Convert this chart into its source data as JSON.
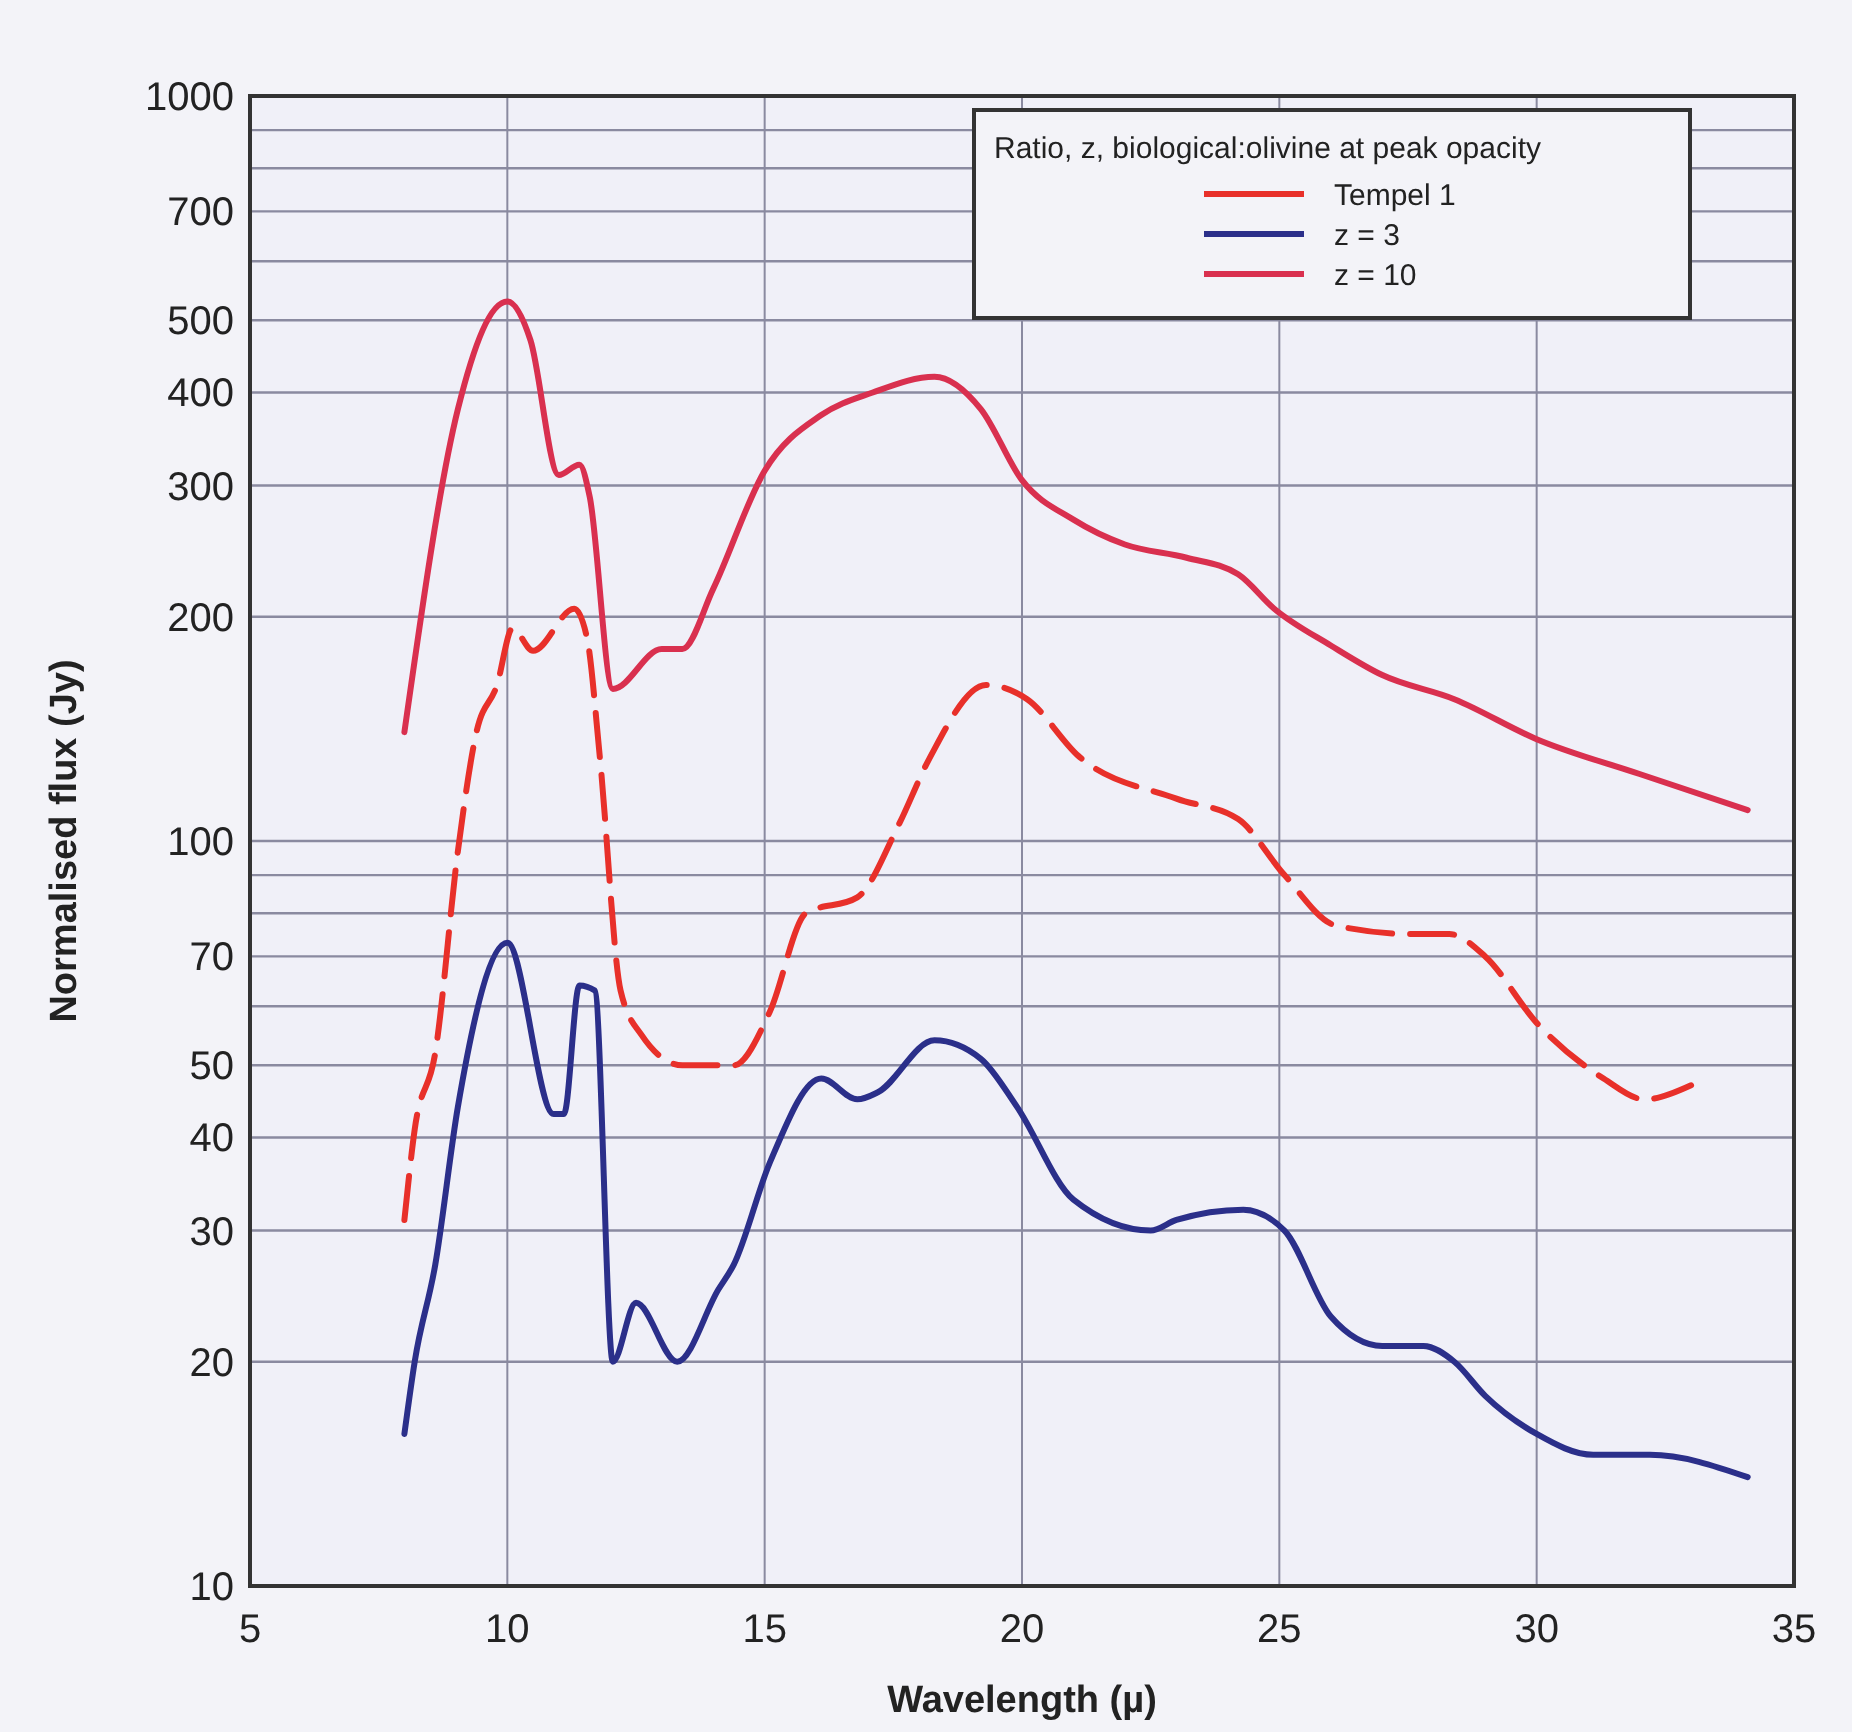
{
  "chart_data": {
    "type": "line",
    "xlabel": "Wavelength (µ)",
    "ylabel": "Normalised flux (Jy)",
    "legend_title": "Ratio, z, biological:olivine at peak opacity",
    "log": "y",
    "grid": true,
    "legend": "top right",
    "xlim": [
      5,
      35
    ],
    "xticks": [
      5,
      10,
      15,
      20,
      25,
      30,
      35
    ],
    "ylim": [
      10,
      1000
    ],
    "yticks": [
      10,
      20,
      30,
      40,
      50,
      {
        "value": 60,
        "label": null
      },
      70,
      {
        "value": 80,
        "label": null
      },
      {
        "value": 90,
        "label": null
      },
      100,
      200,
      300,
      400,
      500,
      {
        "value": 600,
        "label": null
      },
      700,
      {
        "value": 800,
        "label": null
      },
      {
        "value": 900,
        "label": null
      },
      1000
    ],
    "series": [
      {
        "name": "Tempel 1",
        "color": "#e8302a",
        "line_style": "dashed",
        "x": [
          8.0,
          8.2,
          8.6,
          9.04,
          9.4,
          9.8,
          10.1,
          10.5,
          11.3,
          11.55,
          11.8,
          12.2,
          12.6,
          13.4,
          14.4,
          15.1,
          15.8,
          16.8,
          17.6,
          18.2,
          19.3,
          20.1,
          21.1,
          23.0,
          24.2,
          25.1,
          26.1,
          27.6,
          28.3,
          29.0,
          30.0,
          31.3,
          32.1,
          33.0
        ],
        "values": [
          31,
          41,
          52,
          97,
          140,
          162,
          193,
          180,
          205,
          187,
          129,
          63,
          55,
          50,
          50,
          59,
          80,
          84,
          105,
          129,
          162,
          155,
          130,
          114,
          107,
          90,
          77,
          75,
          75,
          70,
          57,
          48,
          45,
          47
        ]
      },
      {
        "name": "z = 3",
        "color": "#2b2f8a",
        "line_style": "solid",
        "x": [
          8.0,
          8.2,
          8.6,
          9.04,
          10.0,
          10.9,
          11.1,
          11.4,
          11.7,
          12.05,
          12.5,
          13.3,
          14.1,
          14.4,
          15.1,
          16.1,
          16.8,
          17.2,
          18.3,
          19.2,
          19.9,
          21.0,
          22.5,
          23.0,
          24.3,
          25.1,
          26.0,
          27.0,
          27.8,
          28.4,
          29.0,
          30.0,
          31.1,
          32.2,
          34.1
        ],
        "values": [
          16,
          20,
          27,
          44,
          73,
          43,
          43,
          64,
          63,
          20,
          24,
          20,
          25,
          27,
          37,
          48,
          45,
          46,
          54,
          51,
          44,
          33,
          30,
          31,
          32,
          30,
          23,
          21,
          21,
          20,
          18,
          16,
          15,
          15,
          14
        ]
      },
      {
        "name": "z = 10",
        "color": "#d9304f",
        "line_style": "solid",
        "x": [
          8.0,
          9.04,
          10.0,
          10.45,
          11.0,
          11.4,
          11.6,
          12.05,
          13.0,
          13.4,
          14.0,
          15.0,
          16.1,
          17.1,
          18.3,
          19.2,
          20.0,
          21.0,
          22.0,
          23.2,
          24.2,
          24.9,
          26.0,
          27.0,
          28.4,
          30.0,
          32.0,
          34.1
        ],
        "values": [
          140,
          380,
          530,
          470,
          310,
          320,
          290,
          160,
          181,
          181,
          218,
          314,
          373,
          400,
          420,
          380,
          305,
          270,
          250,
          240,
          228,
          205,
          183,
          167,
          155,
          137,
          123,
          110
        ]
      }
    ]
  }
}
